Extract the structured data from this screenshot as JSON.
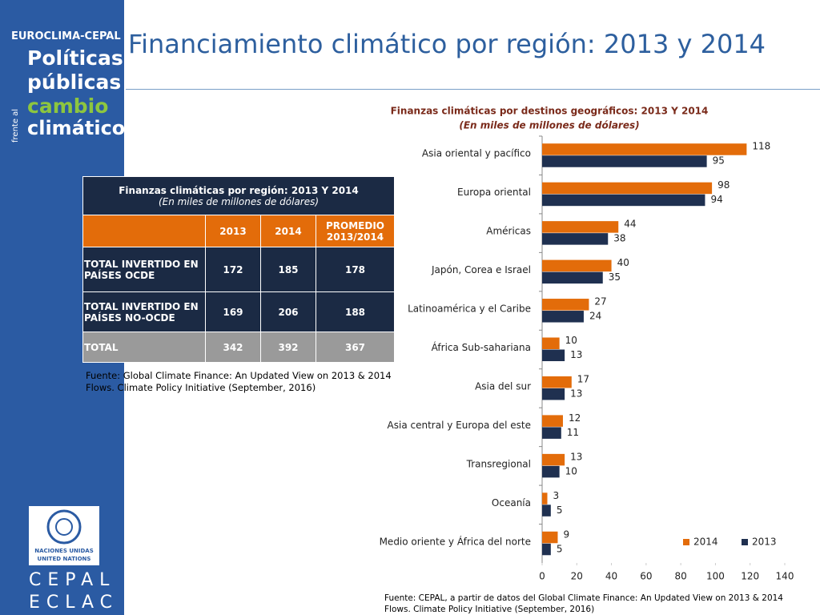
{
  "sidebar": {
    "brand": "EUROCLIMA-CEPAL",
    "line1": "Políticas",
    "line2": "públicas",
    "side": "frente al",
    "line3": "cambio",
    "line4": "climático",
    "un1": "NACIONES UNIDAS",
    "un2": "UNITED NATIONS",
    "cepal": "CEPAL",
    "eclac": "ECLAC"
  },
  "title": "Financiamiento climático por región: 2013 y 2014",
  "table": {
    "title": "Finanzas climáticas por región: 2013 Y 2014",
    "subtitle": "(En miles de millones de dólares)",
    "headers": [
      "2013",
      "2014",
      "PROMEDIO 2013/2014"
    ],
    "rows": [
      [
        "TOTAL INVERTIDO EN PAÍSES OCDE",
        172,
        185,
        178
      ],
      [
        "TOTAL INVERTIDO EN PAÍSES NO-OCDE",
        169,
        206,
        188
      ],
      [
        "TOTAL",
        342,
        392,
        367
      ]
    ],
    "source": "Fuente: Global Climate Finance: An Updated View on 2013 & 2014 Flows. Climate Policy Initiative (September, 2016)"
  },
  "chart_data": {
    "type": "bar",
    "orientation": "horizontal",
    "title": "Finanzas climáticas por destinos geográficos: 2013 Y 2014",
    "subtitle": "(En  miles de millones de dólares)",
    "categories": [
      "Asia oriental y pacífico",
      "Europa oriental",
      "Américas",
      "Japón, Corea e Israel",
      "Latinoamérica y el Caribe",
      "África Sub-sahariana",
      "Asia del sur",
      "Asia central y Europa del este",
      "Transregional",
      "Oceanía",
      "Medio oriente y África del norte"
    ],
    "series": [
      {
        "name": "2014",
        "color": "#e36c0a",
        "values": [
          118,
          98,
          44,
          40,
          27,
          10,
          17,
          12,
          13,
          3,
          9
        ]
      },
      {
        "name": "2013",
        "color": "#1f3050",
        "values": [
          95,
          94,
          38,
          35,
          24,
          13,
          13,
          11,
          10,
          5,
          5
        ]
      }
    ],
    "xlim": [
      0,
      140
    ],
    "xticks": [
      0,
      20,
      40,
      60,
      80,
      100,
      120,
      140
    ],
    "legend": "bottom-right"
  },
  "source": "Fuente: CEPAL, a partir de datos del Global Climate Finance: An Updated View on 2013 & 2014 Flows. Climate Policy Initiative (September, 2016)"
}
